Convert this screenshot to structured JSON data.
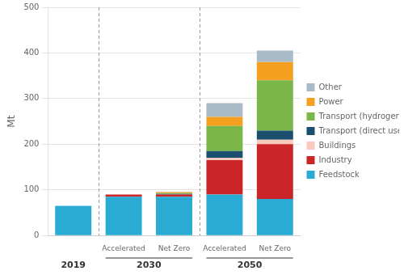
{
  "chart_data": {
    "type": "bar",
    "stacked": true,
    "categories": [
      null,
      "Accelerated",
      "Net Zero",
      "Accelerated",
      "Net Zero"
    ],
    "groups": [
      {
        "label": "2019",
        "count": 1
      },
      {
        "label": "2030",
        "count": 2
      },
      {
        "label": "2050",
        "count": 2
      }
    ],
    "series": [
      {
        "name": "Feedstock",
        "color": "#29ABD4",
        "values": [
          65,
          85,
          85,
          90,
          80
        ]
      },
      {
        "name": "Industry",
        "color": "#CC2529",
        "values": [
          0,
          5,
          5,
          75,
          120
        ]
      },
      {
        "name": "Buildings",
        "color": "#F9C9BC",
        "values": [
          0,
          0,
          0,
          5,
          10
        ]
      },
      {
        "name": "Transport (direct use)",
        "color": "#1A4F6E",
        "values": [
          0,
          0,
          1,
          15,
          20
        ]
      },
      {
        "name": "Transport (hydrogen-derived fuels)",
        "color": "#7AB648",
        "values": [
          0,
          0,
          2,
          55,
          110
        ]
      },
      {
        "name": "Power",
        "color": "#F5A020",
        "values": [
          0,
          0,
          2,
          20,
          40
        ]
      },
      {
        "name": "Other",
        "color": "#AABBC8",
        "values": [
          0,
          0,
          1,
          30,
          25
        ]
      }
    ],
    "ylabel": "Mt",
    "ylim": [
      0,
      500
    ],
    "yticks": [
      0,
      100,
      200,
      300,
      400,
      500
    ],
    "grid": true,
    "legend": "right"
  }
}
